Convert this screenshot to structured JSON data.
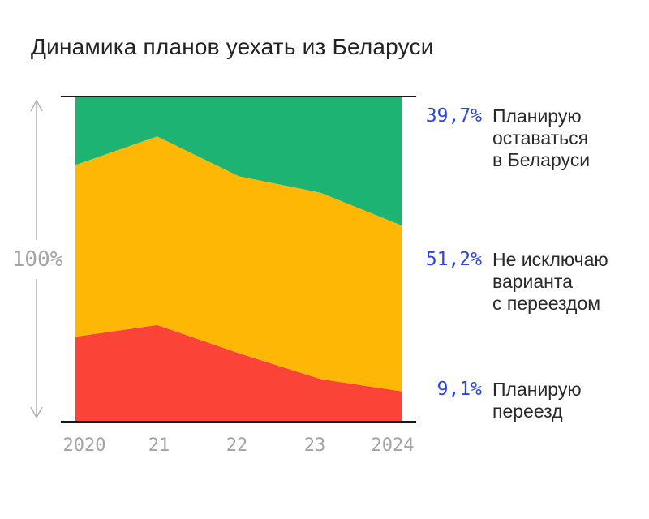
{
  "title": "Динамика планов уехать из Беларуси",
  "y_axis": {
    "label": "100%"
  },
  "legend": {
    "items": [
      {
        "value": "39,7%",
        "lines": [
          "Планирую",
          "оставаться",
          "в Беларуси"
        ]
      },
      {
        "value": "51,2%",
        "lines": [
          "Не исключаю",
          "варианта",
          "с переездом"
        ]
      },
      {
        "value": "9,1%",
        "lines": [
          "Планирую",
          "переезд"
        ]
      }
    ]
  },
  "colors": {
    "stay_green": "#1db473",
    "maybe_yellow": "#ffb706",
    "move_red": "#fb4338",
    "accent_blue": "#2c46e0",
    "axis_black": "#161616",
    "tick_grey": "#a4a4a4",
    "arrow_grey": "#b7b7b7"
  },
  "chart_data": {
    "type": "area",
    "stacked": true,
    "normalized": "100%",
    "title": "Динамика планов уехать из Беларуси",
    "x": [
      2020,
      2021,
      2022,
      2023,
      2024
    ],
    "x_tick_labels": [
      "2020",
      "21",
      "22",
      "23",
      "2024"
    ],
    "ylim": [
      0,
      100
    ],
    "ylabel": "100%",
    "grid": false,
    "legend_position": "right",
    "series": [
      {
        "key": "move",
        "name": "Планирую переезд",
        "color": "#fb4338",
        "values": [
          26.0,
          29.6,
          20.9,
          12.9,
          9.1
        ],
        "latest_label": "9,1%"
      },
      {
        "key": "maybe",
        "name": "Не исключаю варианта с переездом",
        "color": "#ffb706",
        "values": [
          53.1,
          58.3,
          54.7,
          57.6,
          51.2
        ],
        "latest_label": "51,2%"
      },
      {
        "key": "stay",
        "name": "Планирую оставаться в Беларуси",
        "color": "#1db473",
        "values": [
          20.9,
          12.1,
          24.4,
          29.5,
          39.7
        ],
        "latest_label": "39,7%"
      }
    ]
  }
}
